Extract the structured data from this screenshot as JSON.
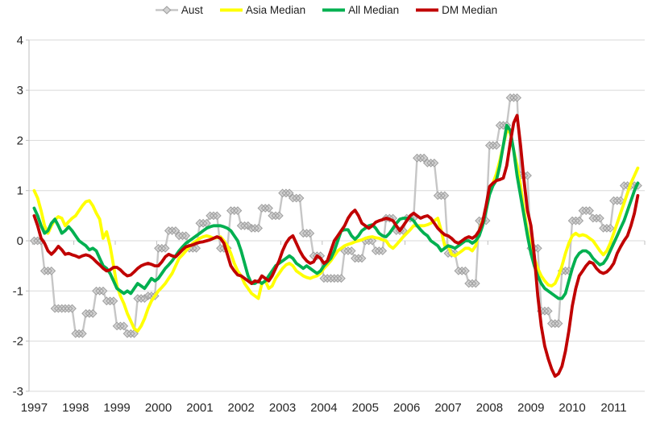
{
  "colors": {
    "background": "#FFFFFF",
    "gridline": "#D9D9D9",
    "axis": "#BFBFBF",
    "label_text": "#262626",
    "aust_line": "#C6C6C6",
    "aust_marker_fill": "#D2D2D2",
    "aust_marker_stroke": "#9E9E9E",
    "asia_median": "#FFFF00",
    "all_median": "#00B050",
    "dm_median": "#C00000"
  },
  "chart_data": {
    "type": "line",
    "title": "",
    "xlabel": "",
    "ylabel": "",
    "grid": true,
    "legend_position": "top-center",
    "x_axis": {
      "tick_labels": [
        "1997",
        "1998",
        "1999",
        "2000",
        "2001",
        "2002",
        "2003",
        "2004",
        "2005",
        "2006",
        "2007",
        "2008",
        "2009",
        "2010",
        "2011"
      ],
      "start": 1997,
      "end": 2011.67,
      "frequency": "monthly"
    },
    "y_axis": {
      "min": -3,
      "max": 4,
      "tick_labels": [
        "4",
        "3",
        "2",
        "1",
        "0",
        "-1",
        "-2",
        "-3"
      ]
    },
    "series": [
      {
        "name": "Aust",
        "marker": "diamond",
        "frequency": "quarterly",
        "start": "1997Q1",
        "line_color": "#C6C6C6",
        "marker_fill": "#D2D2D2",
        "marker_stroke": "#9E9E9E",
        "values": [
          0,
          -0.6,
          -1.35,
          -1.35,
          -1.85,
          -1.45,
          -1,
          -1.2,
          -1.7,
          -1.85,
          -1.15,
          -1.1,
          -0.15,
          0.2,
          0.1,
          -0.15,
          0.35,
          0.5,
          -0.15,
          0.6,
          0.3,
          0.25,
          0.65,
          0.5,
          0.95,
          0.85,
          0.15,
          -0.3,
          -0.75,
          -0.75,
          -0.2,
          -0.35,
          0,
          -0.2,
          0.45,
          0.2,
          0.45,
          1.65,
          1.55,
          0.9,
          -0.25,
          -0.6,
          -0.85,
          0.4,
          1.9,
          2.3,
          2.85,
          1.3,
          -0.15,
          -1.4,
          -1.65,
          -0.6,
          0.4,
          0.6,
          0.45,
          0.25,
          0.8,
          1.1,
          1.1
        ]
      },
      {
        "name": "Asia Median",
        "marker": "none",
        "frequency": "monthly",
        "start": "1997-01",
        "color": "#FFFF00",
        "values": [
          1,
          0.85,
          0.6,
          0.3,
          0.15,
          0.3,
          0.42,
          0.48,
          0.45,
          0.3,
          0.38,
          0.45,
          0.5,
          0.6,
          0.7,
          0.78,
          0.8,
          0.7,
          0.55,
          0.43,
          0.05,
          0.18,
          -0.1,
          -0.5,
          -0.9,
          -1.1,
          -1.25,
          -1.45,
          -1.6,
          -1.75,
          -1.8,
          -1.7,
          -1.55,
          -1.35,
          -1.2,
          -1.1,
          -1,
          -0.93,
          -0.85,
          -0.75,
          -0.65,
          -0.5,
          -0.35,
          -0.28,
          -0.2,
          -0.12,
          -0.05,
          0,
          0.05,
          0.08,
          0.1,
          0.08,
          0.05,
          0.06,
          0.08,
          0,
          -0.1,
          -0.25,
          -0.45,
          -0.6,
          -0.7,
          -0.85,
          -0.95,
          -1.05,
          -1.1,
          -1.15,
          -0.85,
          -0.8,
          -0.95,
          -0.9,
          -0.75,
          -0.65,
          -0.55,
          -0.48,
          -0.45,
          -0.5,
          -0.6,
          -0.65,
          -0.7,
          -0.73,
          -0.75,
          -0.72,
          -0.7,
          -0.65,
          -0.55,
          -0.48,
          -0.4,
          -0.3,
          -0.2,
          -0.15,
          -0.1,
          -0.07,
          -0.05,
          -0.02,
          0,
          0.02,
          0.05,
          0.07,
          0.08,
          0.06,
          0.05,
          0.02,
          0,
          -0.1,
          -0.15,
          -0.08,
          0,
          0.08,
          0.15,
          0.22,
          0.3,
          0.3,
          0.3,
          0.3,
          0.32,
          0.35,
          0.4,
          0.45,
          0.2,
          -0.1,
          -0.1,
          -0.27,
          -0.3,
          -0.25,
          -0.2,
          -0.15,
          -0.15,
          -0.2,
          -0.1,
          0.2,
          0.4,
          0.6,
          0.97,
          1.15,
          1.34,
          1.6,
          1.9,
          2.2,
          2.15,
          1.8,
          1.5,
          1.1,
          0.6,
          0.2,
          -0.1,
          -0.35,
          -0.55,
          -0.7,
          -0.8,
          -0.88,
          -0.9,
          -0.85,
          -0.7,
          -0.5,
          -0.25,
          -0.05,
          0.1,
          0.15,
          0.1,
          0.12,
          0.1,
          0.05,
          0,
          -0.1,
          -0.2,
          -0.28,
          -0.2,
          -0.05,
          0.15,
          0.35,
          0.55,
          0.75,
          0.95,
          1.15,
          1.3,
          1.45
        ]
      },
      {
        "name": "All Median",
        "marker": "none",
        "frequency": "monthly",
        "start": "1997-01",
        "color": "#00B050",
        "values": [
          0.65,
          0.5,
          0.3,
          0.15,
          0.2,
          0.35,
          0.43,
          0.3,
          0.15,
          0.2,
          0.28,
          0.2,
          0.1,
          0,
          -0.05,
          -0.1,
          -0.18,
          -0.15,
          -0.2,
          -0.35,
          -0.5,
          -0.55,
          -0.65,
          -0.8,
          -0.95,
          -1,
          -1.05,
          -1,
          -1.05,
          -0.95,
          -0.85,
          -0.9,
          -0.95,
          -0.85,
          -0.75,
          -0.8,
          -0.75,
          -0.65,
          -0.55,
          -0.48,
          -0.4,
          -0.3,
          -0.2,
          -0.12,
          -0.05,
          0,
          0.05,
          0.1,
          0.15,
          0.2,
          0.25,
          0.28,
          0.3,
          0.3,
          0.3,
          0.28,
          0.25,
          0.2,
          0.1,
          0,
          -0.2,
          -0.45,
          -0.7,
          -0.85,
          -0.85,
          -0.8,
          -0.85,
          -0.8,
          -0.7,
          -0.6,
          -0.5,
          -0.45,
          -0.4,
          -0.35,
          -0.3,
          -0.35,
          -0.45,
          -0.5,
          -0.55,
          -0.5,
          -0.55,
          -0.6,
          -0.65,
          -0.6,
          -0.5,
          -0.42,
          -0.35,
          -0.2,
          0,
          0.2,
          0.22,
          0.22,
          0.1,
          0.03,
          0.1,
          0.2,
          0.25,
          0.3,
          0.32,
          0.25,
          0.15,
          0.1,
          0.08,
          0.15,
          0.25,
          0.35,
          0.43,
          0.45,
          0.45,
          0.45,
          0.4,
          0.3,
          0.22,
          0.15,
          0.1,
          0,
          -0.05,
          -0.1,
          -0.2,
          -0.15,
          -0.1,
          -0.12,
          -0.15,
          -0.1,
          -0.05,
          0,
          0,
          -0.05,
          0,
          0.1,
          0.3,
          0.6,
          0.92,
          1.1,
          1.21,
          1.5,
          1.9,
          2.3,
          2.2,
          1.8,
          1.3,
          0.9,
          0.5,
          0.1,
          -0.25,
          -0.5,
          -0.7,
          -0.85,
          -0.95,
          -1,
          -1.05,
          -1.1,
          -1.15,
          -1.15,
          -1.05,
          -0.8,
          -0.55,
          -0.35,
          -0.25,
          -0.2,
          -0.2,
          -0.25,
          -0.35,
          -0.42,
          -0.48,
          -0.45,
          -0.35,
          -0.2,
          -0.05,
          0.1,
          0.25,
          0.4,
          0.6,
          0.8,
          1,
          1.15
        ]
      },
      {
        "name": "DM Median",
        "marker": "none",
        "frequency": "monthly",
        "start": "1997-01",
        "color": "#C00000",
        "values": [
          0.5,
          0.3,
          0.05,
          -0.05,
          -0.2,
          -0.27,
          -0.2,
          -0.11,
          -0.18,
          -0.27,
          -0.25,
          -0.28,
          -0.3,
          -0.33,
          -0.3,
          -0.28,
          -0.3,
          -0.35,
          -0.42,
          -0.48,
          -0.55,
          -0.6,
          -0.58,
          -0.53,
          -0.53,
          -0.58,
          -0.65,
          -0.7,
          -0.68,
          -0.62,
          -0.55,
          -0.5,
          -0.47,
          -0.45,
          -0.47,
          -0.5,
          -0.5,
          -0.42,
          -0.32,
          -0.27,
          -0.3,
          -0.32,
          -0.25,
          -0.18,
          -0.12,
          -0.1,
          -0.08,
          -0.05,
          -0.03,
          -0.02,
          0,
          0.02,
          0.05,
          0.08,
          0.05,
          -0.05,
          -0.27,
          -0.5,
          -0.6,
          -0.68,
          -0.7,
          -0.75,
          -0.8,
          -0.85,
          -0.8,
          -0.82,
          -0.7,
          -0.75,
          -0.8,
          -0.7,
          -0.55,
          -0.4,
          -0.2,
          -0.05,
          0.05,
          0.1,
          -0.05,
          -0.2,
          -0.32,
          -0.4,
          -0.45,
          -0.42,
          -0.3,
          -0.35,
          -0.45,
          -0.4,
          -0.2,
          0,
          0.1,
          0.2,
          0.3,
          0.45,
          0.55,
          0.61,
          0.5,
          0.35,
          0.3,
          0.25,
          0.3,
          0.37,
          0.4,
          0.42,
          0.45,
          0.43,
          0.4,
          0.3,
          0.2,
          0.3,
          0.4,
          0.5,
          0.55,
          0.5,
          0.45,
          0.48,
          0.5,
          0.45,
          0.35,
          0.25,
          0.18,
          0.12,
          0.1,
          0.05,
          -0.02,
          -0.05,
          0,
          0.05,
          0.08,
          0.05,
          0.1,
          0.2,
          0.37,
          0.7,
          1.08,
          1.15,
          1.2,
          1.22,
          1.25,
          1.5,
          1.95,
          2.35,
          2.5,
          1.9,
          1.2,
          0.6,
          0.3,
          -0.3,
          -1.1,
          -1.7,
          -2.1,
          -2.35,
          -2.55,
          -2.7,
          -2.65,
          -2.5,
          -2.2,
          -1.8,
          -1.3,
          -0.95,
          -0.7,
          -0.6,
          -0.5,
          -0.42,
          -0.45,
          -0.55,
          -0.62,
          -0.65,
          -0.62,
          -0.55,
          -0.45,
          -0.25,
          -0.12,
          0,
          0.1,
          0.3,
          0.55,
          0.9
        ]
      }
    ]
  }
}
